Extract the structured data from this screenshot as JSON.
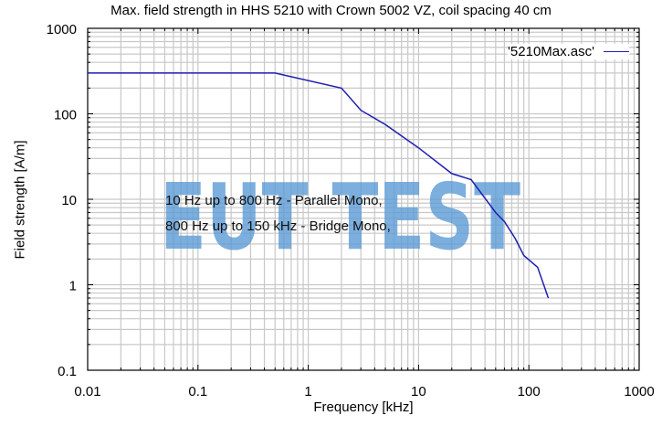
{
  "chart_data": {
    "type": "line",
    "title": "Max. field strength in HHS 5210 with Crown 5002 VZ, coil spacing 40 cm",
    "xlabel": "Frequency [kHz]",
    "ylabel": "Field strength [A/m]",
    "xscale": "log",
    "yscale": "log",
    "xlim": [
      0.01,
      1000
    ],
    "ylim": [
      0.1,
      1000
    ],
    "x_ticks": [
      "0.01",
      "0.1",
      "1",
      "10",
      "100",
      "1000"
    ],
    "y_ticks": [
      "0.1",
      "1",
      "10",
      "100",
      "1000"
    ],
    "grid": true,
    "legend_position": "upper right",
    "series": [
      {
        "name": "'5210Max.asc'",
        "color": "#1f1fb4",
        "x": [
          0.01,
          0.5,
          2,
          3,
          5,
          10,
          20,
          30,
          50,
          60,
          75,
          90,
          120,
          150
        ],
        "y": [
          300,
          300,
          200,
          110,
          75,
          40,
          20,
          17,
          7,
          5.5,
          3.5,
          2.2,
          1.6,
          0.7
        ]
      }
    ],
    "annotations": [
      "10 Hz up to 800 Hz - Parallel Mono,",
      "800 Hz up to 150 kHz - Bridge Mono,"
    ],
    "watermark": "EUT TEST"
  },
  "colors": {
    "line": "#1f1fb4",
    "grid": "#c8c8c8",
    "axis": "#000000",
    "watermark": "#5b9bd5"
  }
}
